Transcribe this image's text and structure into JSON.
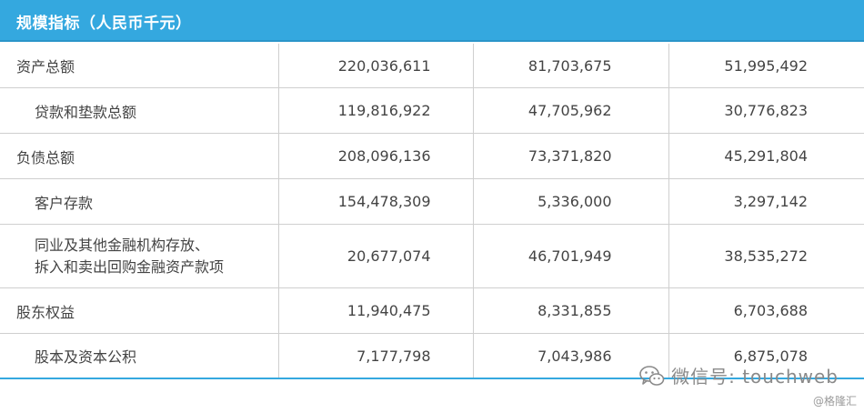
{
  "header": {
    "title": "规模指标（人民币千元）"
  },
  "rows": [
    {
      "label": "资产总额",
      "values": [
        "220,036,611",
        "81,703,675",
        "51,995,492"
      ]
    },
    {
      "label": "贷款和垫款总额",
      "values": [
        "119,816,922",
        "47,705,962",
        "30,776,823"
      ]
    },
    {
      "label": "负债总额",
      "values": [
        "208,096,136",
        "73,371,820",
        "45,291,804"
      ]
    },
    {
      "label": "客户存款",
      "values": [
        "154,478,309",
        "5,336,000",
        "3,297,142"
      ]
    },
    {
      "label_line1": "同业及其他金融机构存放、",
      "label_line2": "拆入和卖出回购金融资产款项",
      "values": [
        "20,677,074",
        "46,701,949",
        "38,535,272"
      ]
    },
    {
      "label": "股东权益",
      "values": [
        "11,940,475",
        "8,331,855",
        "6,703,688"
      ]
    },
    {
      "label": "股本及资本公积",
      "values": [
        "7,177,798",
        "7,043,986",
        "6,875,078"
      ]
    }
  ],
  "watermark": {
    "text": "微信号: touchweb",
    "icon": "wechat-icon"
  },
  "source": {
    "text": "@格隆汇"
  }
}
